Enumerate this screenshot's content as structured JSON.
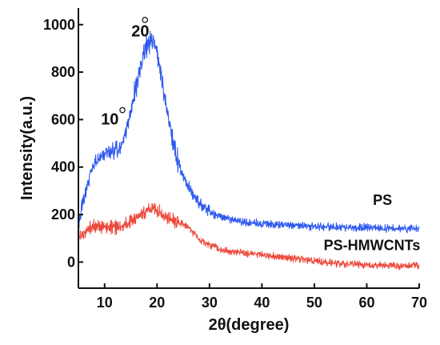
{
  "chart_data": {
    "type": "line",
    "xlabel": "2θ(degree)",
    "ylabel": "Intensity(a.u.)",
    "xlim": [
      5,
      70
    ],
    "ylim": [
      -110,
      1070
    ],
    "xticks": [
      10,
      20,
      30,
      40,
      50,
      60,
      70
    ],
    "yticks": [
      0,
      200,
      400,
      600,
      800,
      1000
    ],
    "grid": false,
    "legend": "none",
    "annotations": [
      {
        "text": "10",
        "x": 11,
        "y": 580
      },
      {
        "text": "20",
        "x": 16.8,
        "y": 950
      }
    ],
    "series": [
      {
        "name": "PS",
        "color": "#2f59f0",
        "label_position": {
          "x": 63,
          "y": 240
        },
        "x": [
          5,
          6,
          7,
          8,
          9,
          10,
          11,
          12,
          13,
          14,
          15,
          16,
          17,
          18,
          19,
          20,
          21,
          22,
          23,
          24,
          25,
          26,
          27,
          28,
          29,
          30,
          32,
          34,
          36,
          38,
          40,
          42,
          44,
          46,
          48,
          50,
          52,
          54,
          56,
          58,
          60,
          62,
          64,
          66,
          68,
          70
        ],
        "values": [
          170,
          260,
          350,
          410,
          440,
          460,
          470,
          470,
          480,
          540,
          630,
          740,
          840,
          910,
          940,
          880,
          760,
          620,
          510,
          420,
          360,
          320,
          280,
          250,
          230,
          210,
          190,
          180,
          170,
          165,
          160,
          158,
          156,
          154,
          152,
          150,
          149,
          148,
          147,
          146,
          145,
          144,
          143,
          142,
          141,
          140
        ]
      },
      {
        "name": "PS-HMWCNTs",
        "color": "#ec4a3d",
        "label_position": {
          "x": 61,
          "y": 50
        },
        "x": [
          5,
          6,
          7,
          8,
          9,
          10,
          11,
          12,
          13,
          14,
          15,
          16,
          17,
          18,
          19,
          20,
          21,
          22,
          23,
          24,
          25,
          26,
          27,
          28,
          29,
          30,
          32,
          34,
          36,
          38,
          40,
          42,
          44,
          46,
          48,
          50,
          52,
          54,
          56,
          58,
          60,
          62,
          64,
          66,
          68,
          70
        ],
        "values": [
          100,
          120,
          140,
          150,
          150,
          150,
          145,
          145,
          150,
          160,
          170,
          185,
          200,
          215,
          225,
          220,
          200,
          185,
          175,
          165,
          160,
          150,
          120,
          95,
          80,
          70,
          55,
          45,
          40,
          35,
          30,
          25,
          20,
          15,
          10,
          5,
          0,
          -5,
          -8,
          -10,
          -12,
          -13,
          -14,
          -15,
          -15,
          -15
        ]
      }
    ]
  }
}
